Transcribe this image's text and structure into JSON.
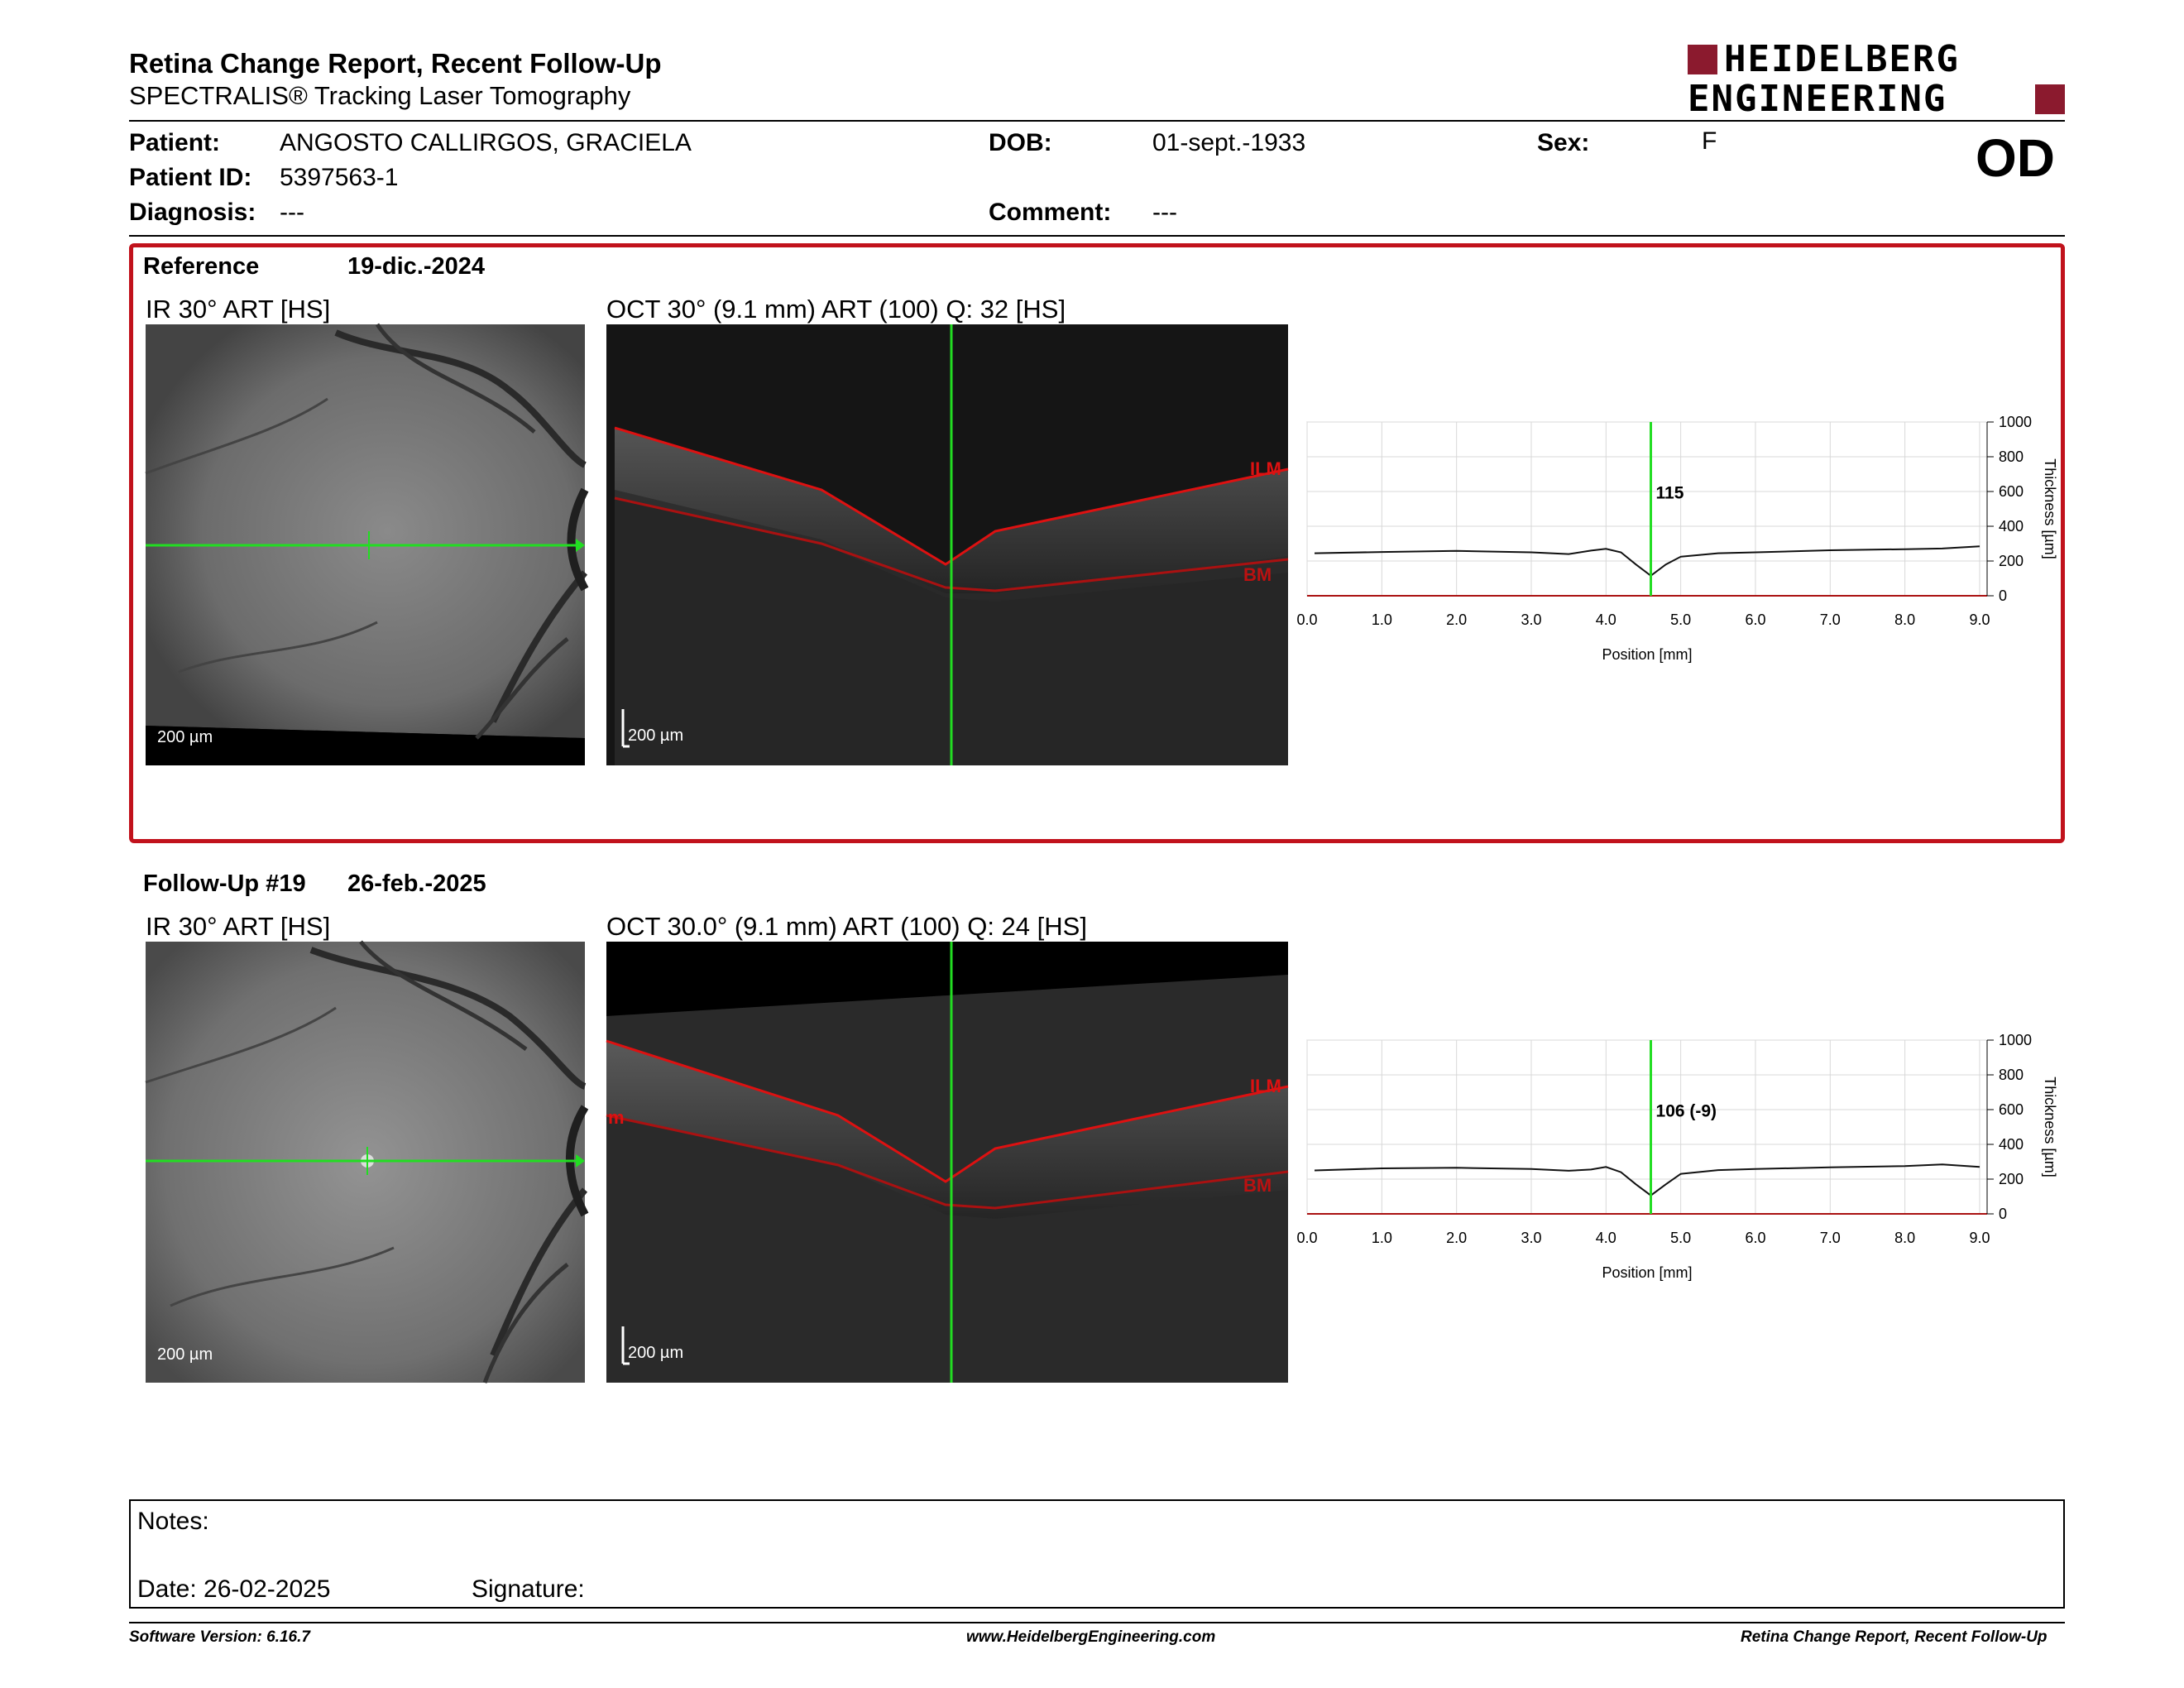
{
  "header": {
    "title": "Retina Change Report, Recent Follow-Up",
    "subtitle": "SPECTRALIS® Tracking Laser Tomography",
    "logo_line1": "HEIDELBERG",
    "logo_line2": "ENGINEERING",
    "brand_color": "#8b1a2e"
  },
  "patient": {
    "patient_label": "Patient:",
    "patient_name": "ANGOSTO CALLIRGOS, GRACIELA",
    "id_label": "Patient ID:",
    "id_value": "5397563-1",
    "diagnosis_label": "Diagnosis:",
    "diagnosis_value": "---",
    "dob_label": "DOB:",
    "dob_value": "01-sept.-1933",
    "comment_label": "Comment:",
    "comment_value": "---",
    "sex_label": "Sex:",
    "sex_value": "F",
    "eye": "OD"
  },
  "reference": {
    "label": "Reference",
    "date": "19-dic.-2024",
    "ir_label": "IR 30° ART [HS]",
    "oct_label": "OCT 30° (9.1 mm) ART (100) Q: 32 [HS]",
    "ir_scale": "200 µm",
    "oct_scale": "200 µm",
    "ilm_label": "ILM",
    "bm_label": "BM",
    "chart_value_label": "115"
  },
  "followup": {
    "label": "Follow-Up #19",
    "date": "26-feb.-2025",
    "ir_label": "IR 30° ART [HS]",
    "oct_label": "OCT 30.0° (9.1 mm) ART (100) Q: 24 [HS]",
    "ir_scale": "200 µm",
    "oct_scale": "200 µm",
    "ilm_label": "ILM",
    "bm_label": "BM",
    "edge_label": "m",
    "chart_value_label": "106 (-9)"
  },
  "notes": {
    "notes_label": "Notes:",
    "date_label": "Date: 26-02-2025",
    "signature_label": "Signature:"
  },
  "footer": {
    "software": "Software Version: 6.16.7",
    "website": "www.HeidelbergEngineering.com",
    "report_name": "Retina Change Report, Recent Follow-Up"
  },
  "chart_data": [
    {
      "type": "line",
      "xlabel": "Position [mm]",
      "ylabel": "Thickness [µm]",
      "xlim": [
        0,
        9.1
      ],
      "ylim": [
        0,
        1000
      ],
      "x_ticks": [
        "0.0",
        "1.0",
        "2.0",
        "3.0",
        "4.0",
        "5.0",
        "6.0",
        "7.0",
        "8.0",
        "9.0"
      ],
      "y_ticks": [
        "0",
        "200",
        "400",
        "600",
        "800",
        "1000"
      ],
      "marker_x": 4.6,
      "marker_label": "115",
      "series": [
        {
          "values_x": [
            0.1,
            1,
            2,
            3,
            3.5,
            3.8,
            4.0,
            4.2,
            4.4,
            4.6,
            4.8,
            5.0,
            5.5,
            6,
            7,
            8,
            8.5,
            9.0
          ],
          "values_y": [
            245,
            252,
            258,
            250,
            240,
            260,
            270,
            250,
            180,
            115,
            180,
            225,
            245,
            250,
            262,
            268,
            272,
            285
          ]
        }
      ]
    },
    {
      "type": "line",
      "xlabel": "Position [mm]",
      "ylabel": "Thickness [µm]",
      "xlim": [
        0,
        9.1
      ],
      "ylim": [
        0,
        1000
      ],
      "x_ticks": [
        "0.0",
        "1.0",
        "2.0",
        "3.0",
        "4.0",
        "5.0",
        "6.0",
        "7.0",
        "8.0",
        "9.0"
      ],
      "y_ticks": [
        "0",
        "200",
        "400",
        "600",
        "800",
        "1000"
      ],
      "marker_x": 4.6,
      "marker_label": "106 (-9)",
      "series": [
        {
          "values_x": [
            0.1,
            1,
            2,
            3,
            3.5,
            3.8,
            4.0,
            4.2,
            4.4,
            4.6,
            4.8,
            5.0,
            5.5,
            6,
            7,
            8,
            8.5,
            9.0
          ],
          "values_y": [
            250,
            262,
            265,
            258,
            248,
            255,
            270,
            240,
            170,
            106,
            170,
            230,
            252,
            258,
            268,
            275,
            285,
            270
          ]
        }
      ]
    }
  ]
}
